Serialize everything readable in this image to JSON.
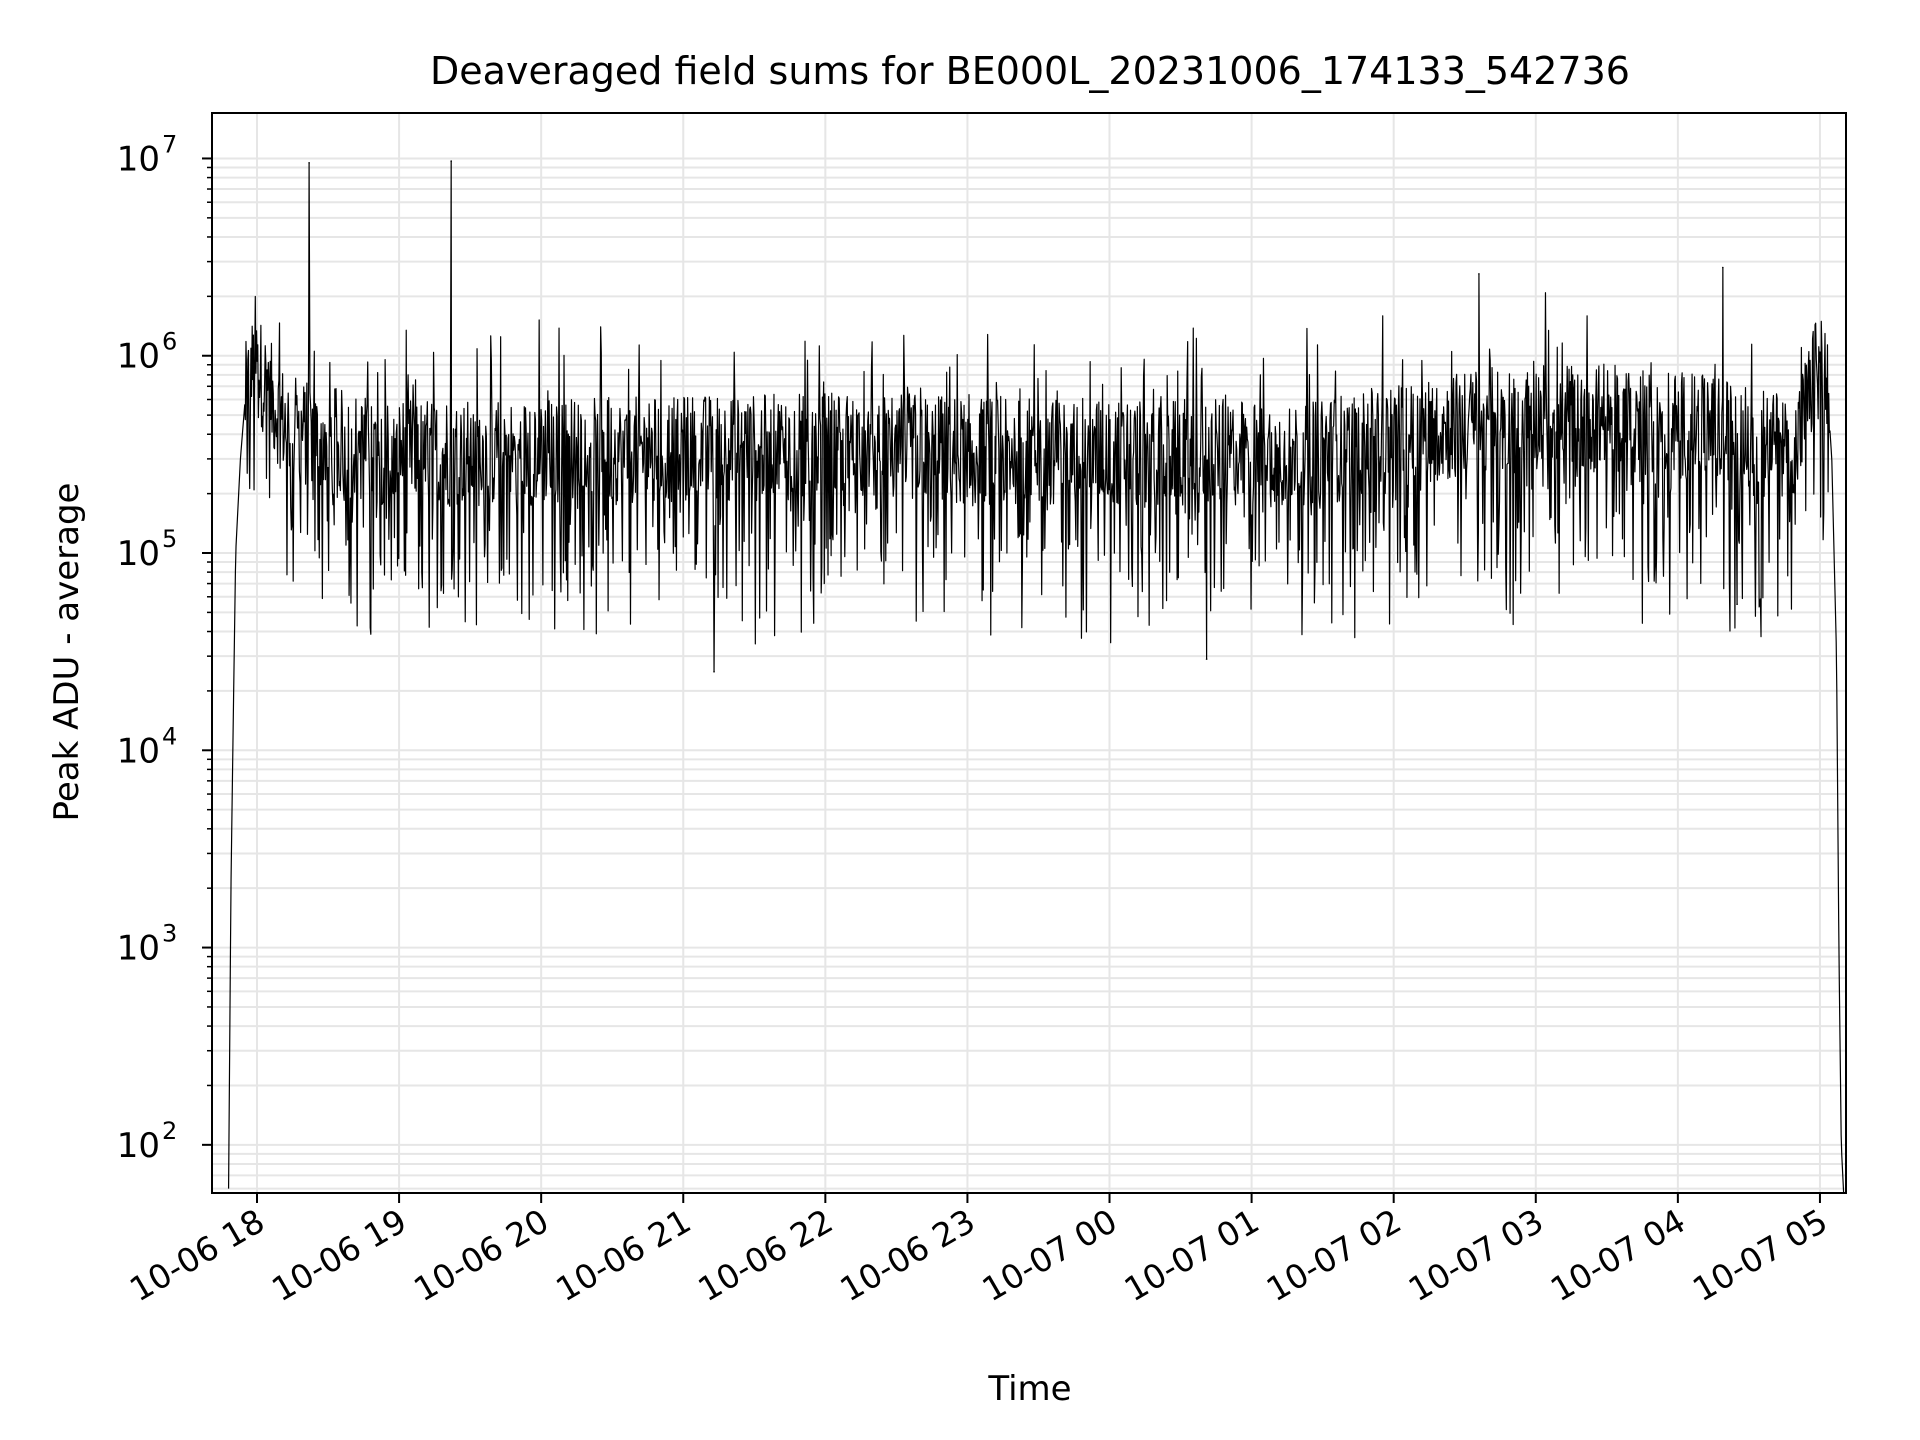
{
  "chart_data": {
    "type": "line",
    "title": "Deaveraged field sums for BE000L_20231006_174133_542736",
    "xlabel": "Time",
    "ylabel": "Peak ADU - average",
    "y_scale": "log",
    "grid": true,
    "grid_minor": true,
    "legend": "none",
    "line_color": "#000000",
    "grid_color": "#e6e6e6",
    "xlim": [
      "2023-10-06 17:41",
      "2023-10-07 05:11"
    ],
    "ylim": [
      57,
      17000000
    ],
    "x_ticks": [
      {
        "value": "2023-10-06 18:00",
        "label": "10-06 18"
      },
      {
        "value": "2023-10-06 19:00",
        "label": "10-06 19"
      },
      {
        "value": "2023-10-06 20:00",
        "label": "10-06 20"
      },
      {
        "value": "2023-10-06 21:00",
        "label": "10-06 21"
      },
      {
        "value": "2023-10-06 22:00",
        "label": "10-06 22"
      },
      {
        "value": "2023-10-06 23:00",
        "label": "10-06 23"
      },
      {
        "value": "2023-10-07 00:00",
        "label": "10-07 00"
      },
      {
        "value": "2023-10-07 01:00",
        "label": "10-07 01"
      },
      {
        "value": "2023-10-07 02:00",
        "label": "10-07 02"
      },
      {
        "value": "2023-10-07 03:00",
        "label": "10-07 03"
      },
      {
        "value": "2023-10-07 04:00",
        "label": "10-07 04"
      },
      {
        "value": "2023-10-07 05:00",
        "label": "10-07 05"
      }
    ],
    "y_ticks": [
      {
        "value": 100,
        "base": "10",
        "exp": "2"
      },
      {
        "value": 1000,
        "base": "10",
        "exp": "3"
      },
      {
        "value": 10000,
        "base": "10",
        "exp": "4"
      },
      {
        "value": 100000,
        "base": "10",
        "exp": "5"
      },
      {
        "value": 1000000,
        "base": "10",
        "exp": "6"
      },
      {
        "value": 10000000,
        "base": "10",
        "exp": "7"
      }
    ],
    "series": [
      {
        "x": [
          "2023-10-06 17:48",
          "2023-10-06 17:49",
          "2023-10-06 17:50",
          "2023-10-06 17:51",
          "2023-10-06 17:53",
          "2023-10-06 17:55",
          "2023-10-06 17:57",
          "2023-10-06 18:00",
          "2023-10-06 18:04",
          "2023-10-06 18:08",
          "2023-10-06 18:12",
          "2023-10-06 18:20",
          "2023-10-06 18:30",
          "2023-10-06 18:40",
          "2023-10-06 18:50",
          "2023-10-06 19:00",
          "2023-10-06 19:20",
          "2023-10-06 19:40",
          "2023-10-06 20:00",
          "2023-10-06 20:30",
          "2023-10-06 21:00",
          "2023-10-06 21:30",
          "2023-10-06 22:00",
          "2023-10-06 22:30",
          "2023-10-06 23:00",
          "2023-10-06 23:30",
          "2023-10-07 00:00",
          "2023-10-07 00:30",
          "2023-10-07 01:00",
          "2023-10-07 01:30",
          "2023-10-07 02:00",
          "2023-10-07 02:30",
          "2023-10-07 03:00",
          "2023-10-07 03:30",
          "2023-10-07 04:00",
          "2023-10-07 04:30",
          "2023-10-07 04:50",
          "2023-10-07 04:58",
          "2023-10-07 05:01",
          "2023-10-07 05:03",
          "2023-10-07 05:05",
          "2023-10-07 05:07",
          "2023-10-07 05:08",
          "2023-10-07 05:09",
          "2023-10-07 05:10"
        ],
        "y": [
          60,
          2000,
          15000,
          100000,
          300000,
          600000,
          800000,
          900000,
          700000,
          550000,
          450000,
          400000,
          380000,
          350000,
          330000,
          330000,
          320000,
          320000,
          330000,
          330000,
          340000,
          340000,
          350000,
          350000,
          330000,
          330000,
          320000,
          320000,
          320000,
          330000,
          380000,
          450000,
          500000,
          480000,
          450000,
          380000,
          350000,
          800000,
          900000,
          700000,
          300000,
          30000,
          1000,
          100,
          57
        ]
      }
    ],
    "notable_points": [
      {
        "x": "2023-10-06 18:22",
        "y": 9500000
      },
      {
        "x": "2023-10-06 19:22",
        "y": 9700000
      },
      {
        "x": "2023-10-06 21:13",
        "y": 25000
      },
      {
        "x": "2023-10-07 00:41",
        "y": 29000
      },
      {
        "x": "2023-10-07 02:36",
        "y": 2600000
      },
      {
        "x": "2023-10-07 04:19",
        "y": 2800000
      },
      {
        "x": "2023-10-07 04:25",
        "y": 55000
      }
    ]
  }
}
